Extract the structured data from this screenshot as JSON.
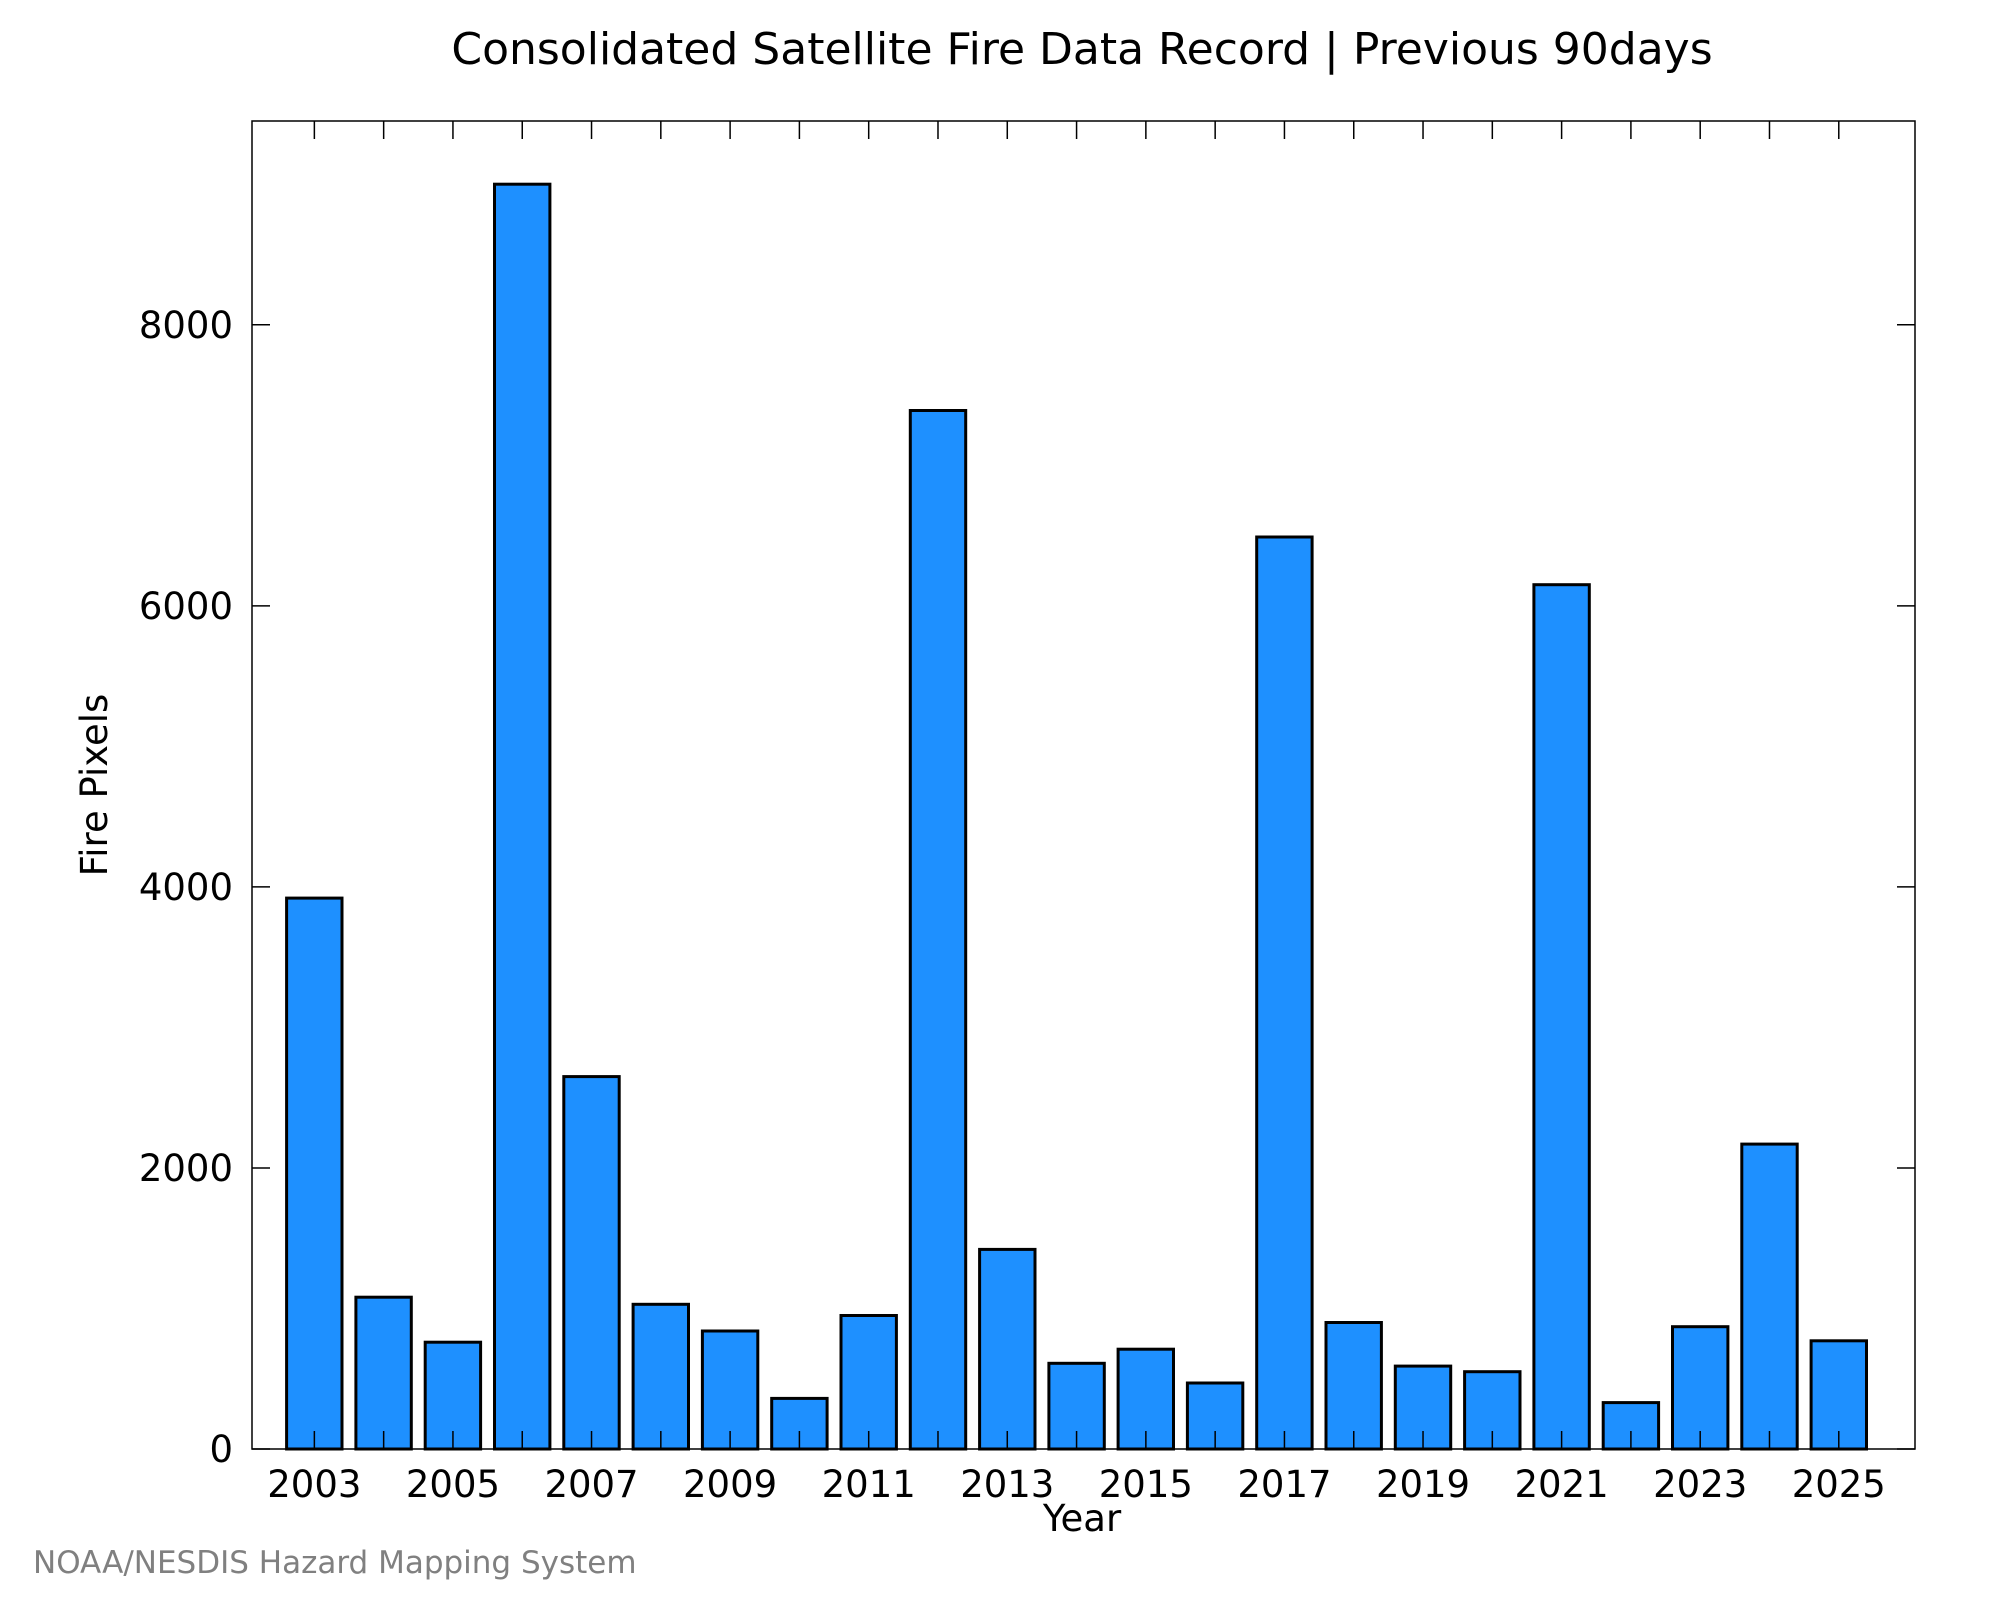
{
  "chart_data": {
    "type": "bar",
    "title": "Consolidated Satellite Fire Data Record | Previous 90days",
    "xlabel": "Year",
    "ylabel": "Fire Pixels",
    "categories": [
      2003,
      2004,
      2005,
      2006,
      2007,
      2008,
      2009,
      2010,
      2011,
      2012,
      2013,
      2014,
      2015,
      2016,
      2017,
      2018,
      2019,
      2020,
      2021,
      2022,
      2023,
      2024,
      2025
    ],
    "values": [
      3920,
      1080,
      760,
      9000,
      2650,
      1030,
      840,
      360,
      950,
      7390,
      1420,
      610,
      710,
      470,
      6490,
      900,
      590,
      550,
      6150,
      330,
      870,
      2170,
      770
    ],
    "xticks": [
      "2003",
      "2005",
      "2007",
      "2009",
      "2011",
      "2013",
      "2015",
      "2017",
      "2019",
      "2021",
      "2023",
      "2025"
    ],
    "yticks": [
      "0",
      "2000",
      "4000",
      "6000",
      "8000"
    ],
    "ylim": [
      0,
      9450
    ],
    "xlim": [
      2002.1,
      2026.1
    ],
    "bar_color": "#1e90ff",
    "grid": false,
    "legend": "none"
  },
  "credit": "NOAA/NESDIS Hazard Mapping System"
}
